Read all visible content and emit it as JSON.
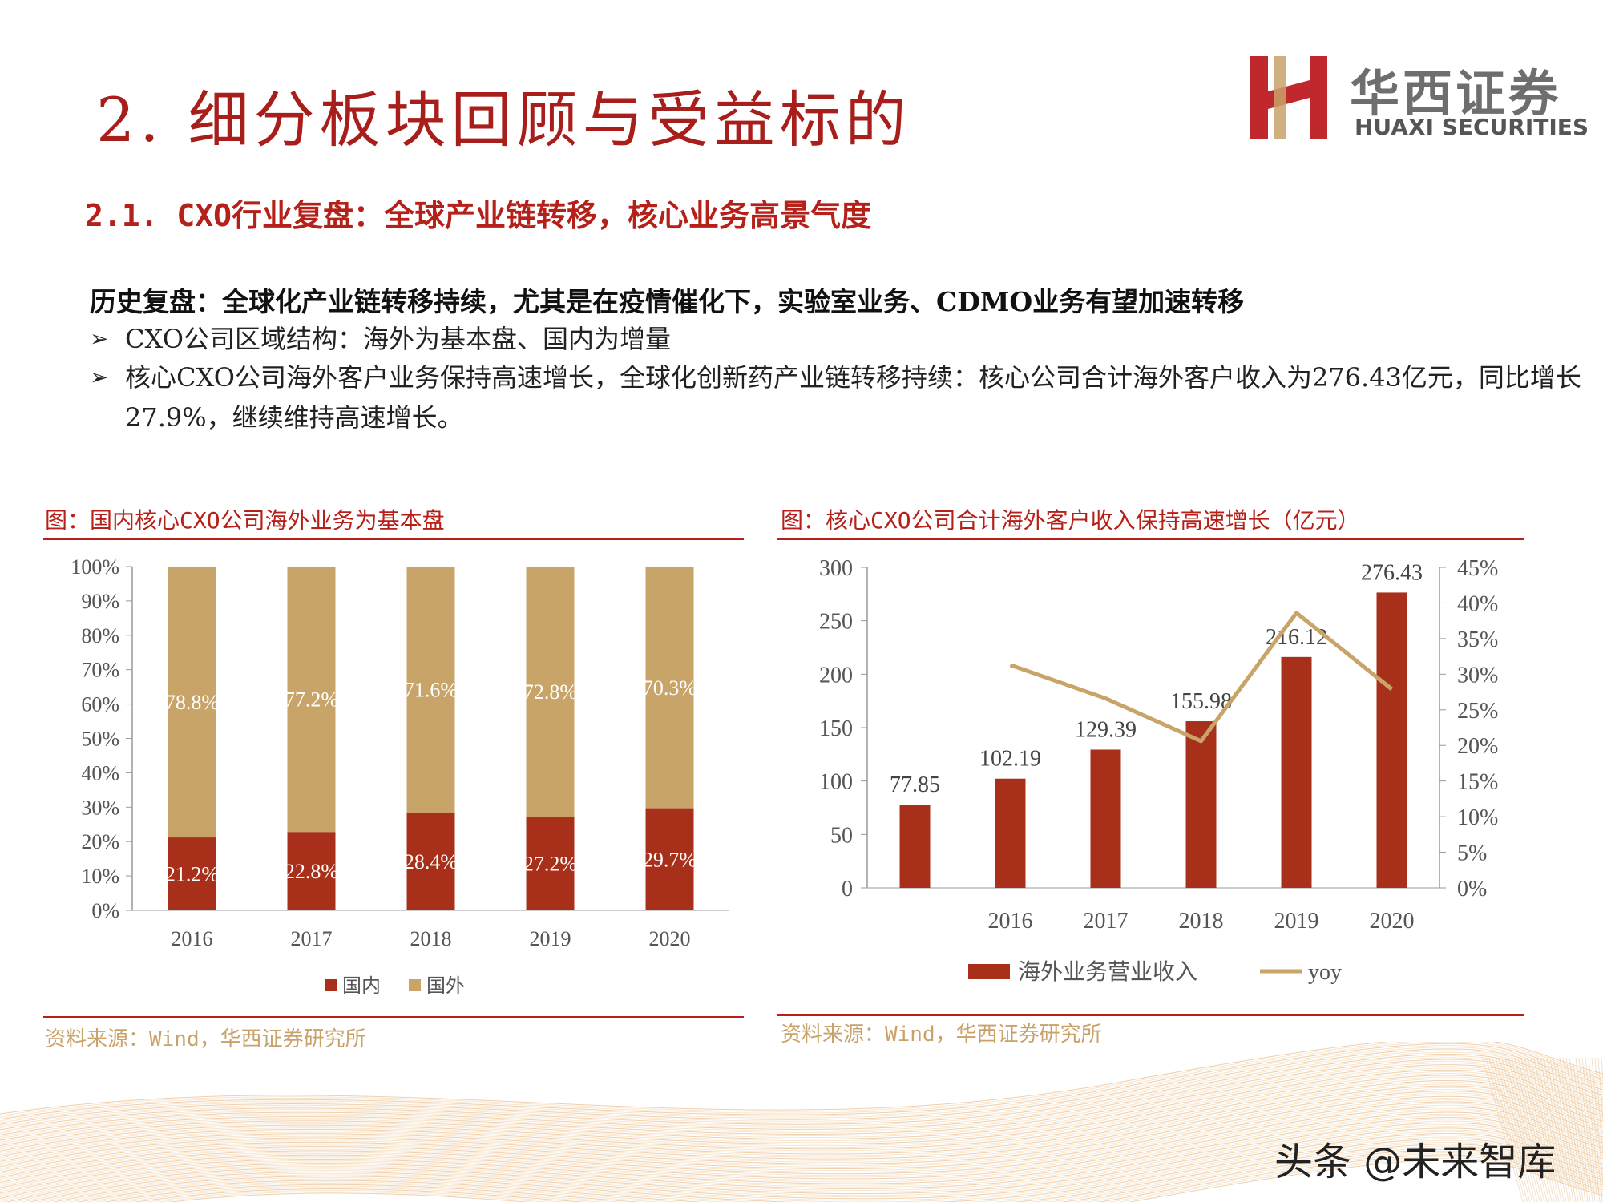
{
  "slide": {
    "title": "2. 细分板块回顾与受益标的",
    "section_title": "2.1. CXO行业复盘：全球产业链转移，核心业务高景气度",
    "summary": "历史复盘：全球化产业链转移持续，尤其是在疫情催化下，实验室业务、CDMO业务有望加速转移",
    "bullets": [
      "CXO公司区域结构：海外为基本盘、国内为增量",
      "核心CXO公司海外客户业务保持高速增长，全球化创新药产业链转移持续：核心公司合计海外客户收入为276.43亿元，同比增长27.9%，继续维持高速增长。"
    ],
    "bullet_marker": "➢"
  },
  "logo": {
    "cn": "华西证券",
    "en": "HUAXI SECURITIES",
    "colors": {
      "red": "#c0282d",
      "gold": "#c9a26a"
    }
  },
  "watermark": "头条 @未来智库",
  "colors": {
    "accent_red": "#a8301a",
    "gold": "#c9a469",
    "caption_red": "#b52019"
  },
  "chart_data": [
    {
      "type": "bar",
      "stacked": true,
      "caption": "图：国内核心CXO公司海外业务为基本盘",
      "source": "资料来源：Wind，华西证券研究所",
      "categories": [
        "2016",
        "2017",
        "2018",
        "2019",
        "2020"
      ],
      "series": [
        {
          "name": "国内",
          "values": [
            21.2,
            22.8,
            28.4,
            27.2,
            29.7
          ],
          "labels": [
            "21.2%",
            "22.8%",
            "28.4%",
            "27.2%",
            "29.7%"
          ],
          "color": "#a8301a"
        },
        {
          "name": "国外",
          "values": [
            78.8,
            77.2,
            71.6,
            72.8,
            70.3
          ],
          "labels": [
            "78.8%",
            "77.2%",
            "71.6%",
            "72.8%",
            "70.3%"
          ],
          "color": "#c9a469"
        }
      ],
      "ylim": [
        0,
        100
      ],
      "yticks": [
        "0%",
        "10%",
        "20%",
        "30%",
        "40%",
        "50%",
        "60%",
        "70%",
        "80%",
        "90%",
        "100%"
      ],
      "legend_position": "bottom",
      "grid": false
    },
    {
      "type": "bar",
      "caption": "图：核心CXO公司合计海外客户收入保持高速增长（亿元）",
      "source": "资料来源：Wind，华西证券研究所",
      "categories": [
        "",
        "2016",
        "2017",
        "2018",
        "2019",
        "2020"
      ],
      "series": [
        {
          "name": "海外业务营业收入",
          "type": "bar",
          "axis": "left",
          "values": [
            77.85,
            102.19,
            129.39,
            155.98,
            216.12,
            276.43
          ],
          "labels": [
            "77.85",
            "102.19",
            "129.39",
            "155.98",
            "216.12",
            "276.43"
          ],
          "color": "#a8301a"
        },
        {
          "name": "yoy",
          "type": "line",
          "axis": "right",
          "values": [
            null,
            31.3,
            26.6,
            20.6,
            38.6,
            27.9
          ],
          "color": "#c9a469"
        }
      ],
      "ylim": [
        0,
        300
      ],
      "yticks": [
        "0",
        "50",
        "100",
        "150",
        "200",
        "250",
        "300"
      ],
      "y2lim": [
        0,
        45
      ],
      "y2ticks": [
        "0%",
        "5%",
        "10%",
        "15%",
        "20%",
        "25%",
        "30%",
        "35%",
        "40%",
        "45%"
      ],
      "legend_position": "bottom",
      "grid": false
    }
  ]
}
